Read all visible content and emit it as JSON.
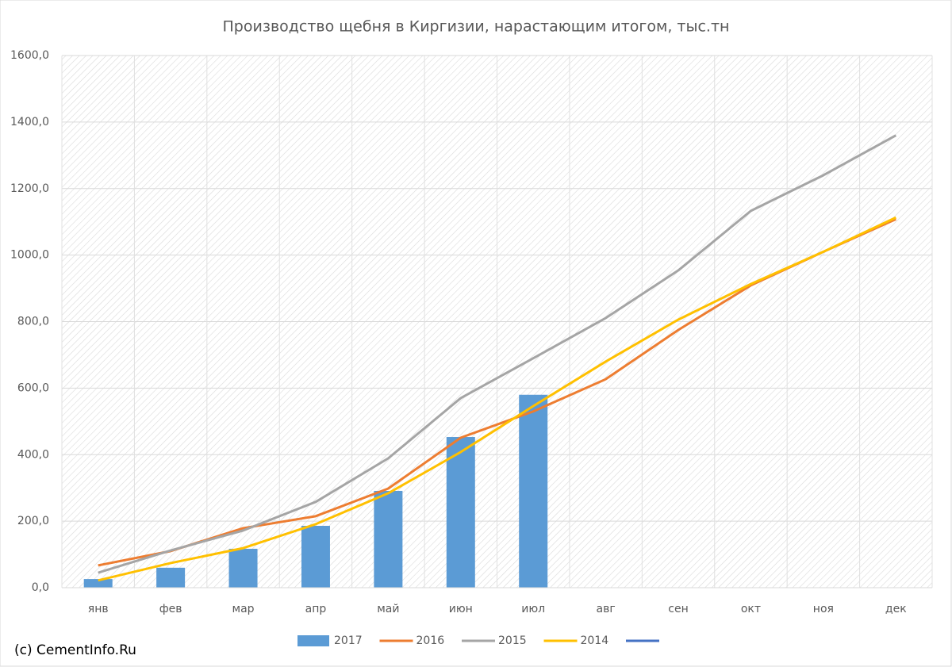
{
  "chart_data": {
    "type": "bar_line",
    "title": "Производство щебня в Киргизии, нарастающим итогом, тыс.тн",
    "source": "(c) CementInfo.Ru",
    "categories": [
      "янв",
      "фев",
      "мар",
      "апр",
      "май",
      "июн",
      "июл",
      "авг",
      "сен",
      "окт",
      "ноя",
      "дек"
    ],
    "series": [
      {
        "name": "2017",
        "type": "bar",
        "color": "#5b9bd5",
        "values": [
          26,
          60,
          117,
          186,
          291,
          453,
          580,
          null,
          null,
          null,
          null,
          null
        ]
      },
      {
        "name": "2016",
        "type": "line",
        "color": "#ed7d31",
        "values": [
          67,
          110,
          179,
          215,
          298,
          451,
          530,
          627,
          775,
          909,
          1010,
          1108
        ]
      },
      {
        "name": "2015",
        "type": "line",
        "color": "#a5a5a5",
        "values": [
          45,
          112,
          172,
          258,
          389,
          570,
          690,
          811,
          954,
          1133,
          1240,
          1360
        ]
      },
      {
        "name": "2014",
        "type": "line",
        "color": "#ffc000",
        "values": [
          22,
          74,
          119,
          191,
          284,
          408,
          546,
          680,
          806,
          913,
          1010,
          1113
        ]
      },
      {
        "type": "line",
        "color": "#4472c4",
        "values": [
          null,
          null,
          null,
          null,
          null,
          null,
          null,
          null,
          null,
          null,
          null,
          null
        ]
      }
    ],
    "ylim": [
      0,
      1600
    ],
    "yticks": [
      {
        "value": 0,
        "label": "0,0"
      },
      {
        "value": 200,
        "label": "200,0"
      },
      {
        "value": 400,
        "label": "400,0"
      },
      {
        "value": 600,
        "label": "600,0"
      },
      {
        "value": 800,
        "label": "800,0"
      },
      {
        "value": 1000,
        "label": "1000,0"
      },
      {
        "value": 1200,
        "label": "1200,0"
      },
      {
        "value": 1400,
        "label": "1400,0"
      },
      {
        "value": 1600,
        "label": "1600,0"
      }
    ],
    "grid": true,
    "legend": "bottom"
  }
}
